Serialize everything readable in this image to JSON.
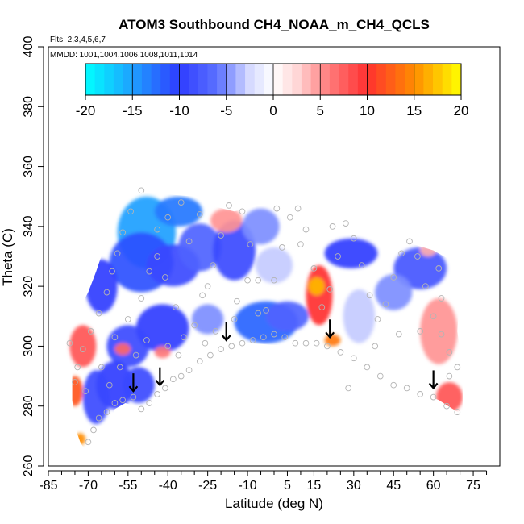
{
  "chart_data": {
    "type": "heatmap",
    "title": "ATOM3 Southbound CH4_NOAA_m_CH4_QCLS",
    "subtitle_flights": "Flts: 2,3,4,5,6,7",
    "subtitle_dates": "MMDD: 1001,1004,1006,1008,1011,1014",
    "xlabel": "Latitude (deg N)",
    "ylabel": "Theta (C)",
    "xlim": [
      -85,
      85
    ],
    "ylim": [
      260,
      400
    ],
    "x_ticks": [
      -85,
      -70,
      -55,
      -40,
      -25,
      -10,
      5,
      15,
      30,
      45,
      60,
      75
    ],
    "x_minor_ticks": [
      -80,
      -75,
      -65,
      -60,
      -50,
      -45,
      -35,
      -30,
      -20,
      -15,
      -5,
      0,
      10,
      20,
      25,
      35,
      40,
      50,
      55,
      65,
      70,
      80
    ],
    "y_ticks": [
      260,
      280,
      300,
      320,
      340,
      360,
      380,
      400
    ],
    "colorbar": {
      "ticks": [
        -20,
        -15,
        -10,
        -5,
        0,
        5,
        10,
        15,
        20
      ],
      "range": [
        -20,
        20
      ],
      "stops": [
        {
          "v": -20,
          "color": "#00ffff"
        },
        {
          "v": -15,
          "color": "#1ea0ff"
        },
        {
          "v": -10,
          "color": "#2f3cff"
        },
        {
          "v": -6,
          "color": "#5a70ff"
        },
        {
          "v": -2.5,
          "color": "#d6daff"
        },
        {
          "v": 0,
          "color": "#ffffff"
        },
        {
          "v": 2.5,
          "color": "#ffd6d6"
        },
        {
          "v": 6,
          "color": "#ff7a7a"
        },
        {
          "v": 10,
          "color": "#ff3030"
        },
        {
          "v": 15,
          "color": "#ff8c00"
        },
        {
          "v": 20,
          "color": "#ffff00"
        }
      ]
    },
    "field_boundary": [
      [
        -76,
        291
      ],
      [
        -79,
        296
      ],
      [
        -79,
        303
      ],
      [
        -76,
        309
      ],
      [
        -73,
        313
      ],
      [
        -70,
        318
      ],
      [
        -67,
        325
      ],
      [
        -64,
        333
      ],
      [
        -61,
        341
      ],
      [
        -58,
        348
      ],
      [
        -56,
        351
      ],
      [
        -45,
        351
      ],
      [
        -30,
        350
      ],
      [
        -24,
        347
      ],
      [
        -15,
        345
      ],
      [
        -5,
        347
      ],
      [
        5,
        348
      ],
      [
        10,
        346
      ],
      [
        18,
        345
      ],
      [
        25,
        343
      ],
      [
        35,
        339
      ],
      [
        45,
        336
      ],
      [
        60,
        332
      ],
      [
        68,
        328
      ],
      [
        70,
        318
      ],
      [
        69,
        305
      ],
      [
        71,
        292
      ],
      [
        71,
        277
      ],
      [
        62,
        282
      ],
      [
        50,
        286
      ],
      [
        40,
        288
      ],
      [
        25,
        297
      ],
      [
        15,
        301
      ],
      [
        8,
        300
      ],
      [
        -10,
        301
      ],
      [
        -20,
        296
      ],
      [
        -30,
        291
      ],
      [
        -42,
        286
      ],
      [
        -49,
        279
      ],
      [
        -56,
        281
      ],
      [
        -60,
        279
      ],
      [
        -62,
        274
      ],
      [
        -65,
        270
      ],
      [
        -68,
        265
      ],
      [
        -71,
        265
      ],
      [
        -73,
        268
      ],
      [
        -75,
        273
      ],
      [
        -76,
        282
      ]
    ],
    "patches": [
      {
        "lat": -48,
        "theta": 338,
        "rx": 11,
        "ry": 12,
        "value": -15
      },
      {
        "lat": -36,
        "theta": 345,
        "rx": 9,
        "ry": 5,
        "value": -13
      },
      {
        "lat": -50,
        "theta": 328,
        "rx": 12,
        "ry": 10,
        "value": -11
      },
      {
        "lat": -65,
        "theta": 320,
        "rx": 6,
        "ry": 9,
        "value": -10
      },
      {
        "lat": -38,
        "theta": 327,
        "rx": 10,
        "ry": 7,
        "value": -9
      },
      {
        "lat": -28,
        "theta": 333,
        "rx": 8,
        "ry": 8,
        "value": -7
      },
      {
        "lat": -15,
        "theta": 332,
        "rx": 8,
        "ry": 10,
        "value": -9
      },
      {
        "lat": -5,
        "theta": 340,
        "rx": 7,
        "ry": 6,
        "value": -5
      },
      {
        "lat": 0,
        "theta": 327,
        "rx": 7,
        "ry": 6,
        "value": -3
      },
      {
        "lat": -3,
        "theta": 308,
        "rx": 12,
        "ry": 7,
        "value": -12
      },
      {
        "lat": -42,
        "theta": 306,
        "rx": 10,
        "ry": 8,
        "value": -10
      },
      {
        "lat": -55,
        "theta": 300,
        "rx": 8,
        "ry": 7,
        "value": -9
      },
      {
        "lat": -60,
        "theta": 287,
        "rx": 7,
        "ry": 8,
        "value": -10
      },
      {
        "lat": -51,
        "theta": 287,
        "rx": 6,
        "ry": 6,
        "value": -9
      },
      {
        "lat": -67,
        "theta": 283,
        "rx": 5,
        "ry": 9,
        "value": -9
      },
      {
        "lat": -25,
        "theta": 309,
        "rx": 6,
        "ry": 5,
        "value": -5
      },
      {
        "lat": 5,
        "theta": 310,
        "rx": 8,
        "ry": 5,
        "value": -7
      },
      {
        "lat": 29,
        "theta": 331,
        "rx": 10,
        "ry": 5,
        "value": -10
      },
      {
        "lat": 55,
        "theta": 326,
        "rx": 10,
        "ry": 7,
        "value": -8
      },
      {
        "lat": 45,
        "theta": 318,
        "rx": 7,
        "ry": 6,
        "value": -5
      },
      {
        "lat": 32,
        "theta": 310,
        "rx": 6,
        "ry": 9,
        "value": -3
      },
      {
        "lat": 17,
        "theta": 317,
        "rx": 5,
        "ry": 10,
        "value": 10
      },
      {
        "lat": 16,
        "theta": 320,
        "rx": 3,
        "ry": 3,
        "value": 17
      },
      {
        "lat": 22,
        "theta": 302,
        "rx": 3,
        "ry": 2,
        "value": 14
      },
      {
        "lat": 62,
        "theta": 305,
        "rx": 7,
        "ry": 11,
        "value": 5
      },
      {
        "lat": 66,
        "theta": 283,
        "rx": 5,
        "ry": 5,
        "value": 8
      },
      {
        "lat": -72,
        "theta": 300,
        "rx": 5,
        "ry": 7,
        "value": 8
      },
      {
        "lat": -75,
        "theta": 285,
        "rx": 3,
        "ry": 5,
        "value": 12
      },
      {
        "lat": -73,
        "theta": 269,
        "rx": 2,
        "ry": 2,
        "value": 15
      },
      {
        "lat": -57,
        "theta": 299,
        "rx": 3,
        "ry": 2,
        "value": 7
      },
      {
        "lat": -42,
        "theta": 298,
        "rx": 3,
        "ry": 2,
        "value": 6
      },
      {
        "lat": -18,
        "theta": 342,
        "rx": 6,
        "ry": 4,
        "value": 5
      },
      {
        "lat": 58,
        "theta": 332,
        "rx": 3,
        "ry": 2,
        "value": 4
      }
    ],
    "tropopause_arrows": [
      {
        "lat": -53,
        "theta": 285
      },
      {
        "lat": -43,
        "theta": 287
      },
      {
        "lat": -18,
        "theta": 302
      },
      {
        "lat": 21,
        "theta": 303
      },
      {
        "lat": 60,
        "theta": 286
      }
    ],
    "sample_points": [
      [
        -70,
        268
      ],
      [
        -68,
        272
      ],
      [
        -66,
        276
      ],
      [
        -63,
        278
      ],
      [
        -60,
        281
      ],
      [
        -57,
        282
      ],
      [
        -53,
        283
      ],
      [
        -50,
        279
      ],
      [
        -47,
        281
      ],
      [
        -44,
        284
      ],
      [
        -41,
        286
      ],
      [
        -38,
        289
      ],
      [
        -35,
        290
      ],
      [
        -32,
        292
      ],
      [
        -28,
        295
      ],
      [
        -24,
        297
      ],
      [
        -20,
        299
      ],
      [
        -16,
        300
      ],
      [
        -12,
        301
      ],
      [
        -8,
        302
      ],
      [
        -4,
        303
      ],
      [
        0,
        304
      ],
      [
        4,
        303
      ],
      [
        8,
        301
      ],
      [
        12,
        301
      ],
      [
        16,
        301
      ],
      [
        20,
        300
      ],
      [
        25,
        298
      ],
      [
        30,
        296
      ],
      [
        35,
        293
      ],
      [
        40,
        290
      ],
      [
        45,
        287
      ],
      [
        50,
        286
      ],
      [
        55,
        284
      ],
      [
        60,
        283
      ],
      [
        65,
        280
      ],
      [
        69,
        278
      ],
      [
        -74,
        293
      ],
      [
        -72,
        299
      ],
      [
        -69,
        305
      ],
      [
        -66,
        311
      ],
      [
        -63,
        318
      ],
      [
        -61,
        325
      ],
      [
        -59,
        331
      ],
      [
        -57,
        338
      ],
      [
        -54,
        345
      ],
      [
        -50,
        352
      ],
      [
        -44,
        339
      ],
      [
        -41,
        323
      ],
      [
        -37,
        313
      ],
      [
        -34,
        303
      ],
      [
        -30,
        307
      ],
      [
        -27,
        317
      ],
      [
        -23,
        327
      ],
      [
        -20,
        337
      ],
      [
        -17,
        347
      ],
      [
        -12,
        345
      ],
      [
        -9,
        334
      ],
      [
        -6,
        322
      ],
      [
        -3,
        312
      ],
      [
        0,
        322
      ],
      [
        3,
        333
      ],
      [
        6,
        343
      ],
      [
        9,
        346
      ],
      [
        12,
        339
      ],
      [
        15,
        326
      ],
      [
        18,
        313
      ],
      [
        21,
        319
      ],
      [
        24,
        330
      ],
      [
        27,
        341
      ],
      [
        30,
        336
      ],
      [
        33,
        327
      ],
      [
        36,
        317
      ],
      [
        39,
        309
      ],
      [
        42,
        314
      ],
      [
        45,
        323
      ],
      [
        48,
        331
      ],
      [
        51,
        335
      ],
      [
        54,
        330
      ],
      [
        57,
        320
      ],
      [
        60,
        310
      ],
      [
        63,
        304
      ],
      [
        66,
        298
      ],
      [
        69,
        293
      ],
      [
        62,
        326
      ],
      [
        -77,
        301
      ],
      [
        -75,
        288
      ],
      [
        -71,
        285
      ],
      [
        -65,
        293
      ],
      [
        -60,
        303
      ],
      [
        -55,
        309
      ],
      [
        -50,
        316
      ],
      [
        -47,
        325
      ],
      [
        -44,
        330
      ],
      [
        -40,
        343
      ],
      [
        -35,
        348
      ],
      [
        -28,
        344
      ],
      [
        -32,
        335
      ],
      [
        -25,
        320
      ],
      [
        -14,
        315
      ],
      [
        -10,
        322
      ],
      [
        1,
        346
      ],
      [
        10,
        334
      ],
      [
        22,
        340
      ],
      [
        -62,
        287
      ],
      [
        -58,
        293
      ],
      [
        -52,
        297
      ],
      [
        -48,
        302
      ],
      [
        -40,
        300
      ],
      [
        -36,
        297
      ],
      [
        -26,
        301
      ],
      [
        -22,
        305
      ],
      [
        -15,
        309
      ],
      [
        -6,
        311
      ],
      [
        38,
        300
      ],
      [
        47,
        304
      ],
      [
        55,
        305
      ],
      [
        63,
        316
      ],
      [
        28,
        286
      ],
      [
        66,
        290
      ]
    ]
  }
}
